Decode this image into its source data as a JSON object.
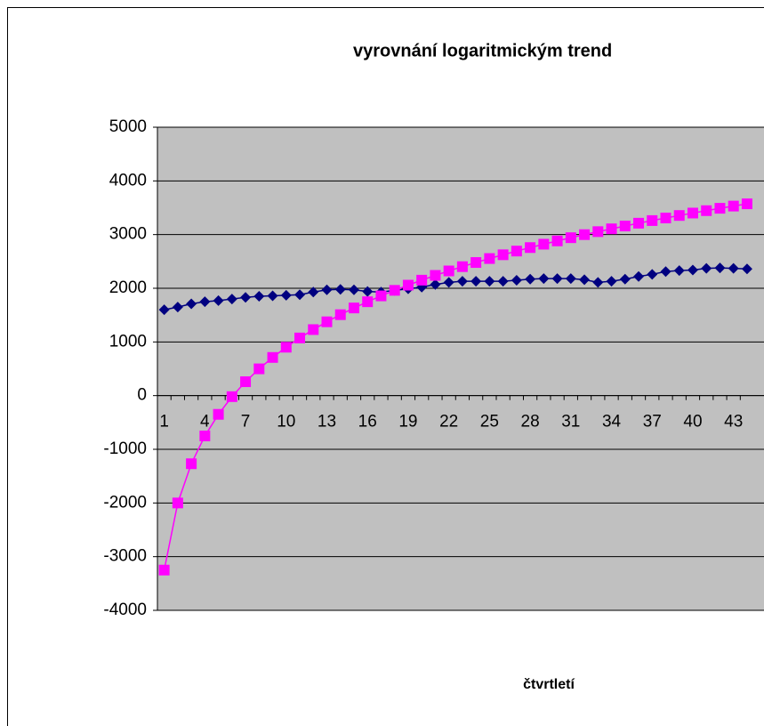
{
  "chart_data": {
    "type": "line",
    "title": "vyrovnání logaritmickým trend",
    "x_label": "čtvrtletí",
    "categories": [
      1,
      null,
      null,
      4,
      null,
      null,
      7,
      null,
      null,
      10,
      null,
      null,
      13,
      null,
      null,
      16,
      null,
      null,
      19,
      null,
      null,
      22,
      null,
      null,
      25,
      null,
      null,
      28,
      null,
      null,
      31,
      null,
      null,
      34,
      null,
      null,
      37,
      null,
      null,
      40,
      null,
      null,
      43,
      null
    ],
    "series": [
      {
        "color": "#000080",
        "marker": "diamond",
        "values": [
          1600,
          1650,
          1710,
          1750,
          1770,
          1800,
          1830,
          1850,
          1860,
          1870,
          1880,
          1930,
          1970,
          1980,
          1970,
          1940,
          1930,
          1960,
          1990,
          2020,
          2070,
          2110,
          2130,
          2130,
          2130,
          2130,
          2150,
          2170,
          2180,
          2180,
          2180,
          2160,
          2110,
          2130,
          2170,
          2220,
          2260,
          2310,
          2330,
          2340,
          2370,
          2380,
          2370,
          2360
        ]
      },
      {
        "color": "#ff00ff",
        "marker": "square",
        "values": [
          -3250,
          -2000,
          -1269,
          -751,
          -349,
          -19,
          259,
          499,
          711,
          902,
          1074,
          1230,
          1375,
          1508,
          1633,
          1749,
          1858,
          1961,
          2058,
          2151,
          2240,
          2323,
          2403,
          2480,
          2554,
          2624,
          2693,
          2758,
          2821,
          2882,
          2942,
          2999,
          3055,
          3107,
          3160,
          3212,
          3261,
          3309,
          3356,
          3401,
          3446,
          3490,
          3531,
          3573
        ]
      }
    ],
    "ylim": [
      -4000,
      5000
    ],
    "yticks": [
      -4000,
      -3000,
      -2000,
      -1000,
      0,
      1000,
      2000,
      3000,
      4000,
      5000
    ],
    "grid": true,
    "plot_background": "#c0c0c0"
  }
}
